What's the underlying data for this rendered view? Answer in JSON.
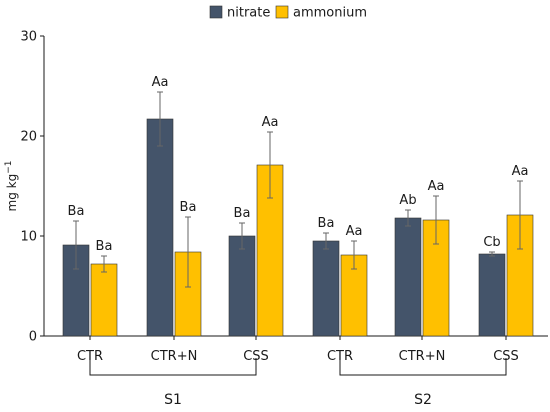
{
  "chart_data": {
    "type": "bar",
    "ylabel_main": "mg kg",
    "ylabel_sup": "−1",
    "ylim": [
      0,
      30
    ],
    "yticks": [
      0,
      10,
      20,
      30
    ],
    "categories": [
      "CTR",
      "CTR+N",
      "CSS",
      "CTR",
      "CTR+N",
      "CSS"
    ],
    "groups": [
      {
        "label": "S1",
        "start": 0,
        "end": 2
      },
      {
        "label": "S2",
        "start": 3,
        "end": 5
      }
    ],
    "series": [
      {
        "name": "nitrate",
        "color": "#44546a",
        "values": [
          9.1,
          21.7,
          10.0,
          9.5,
          11.8,
          8.2
        ],
        "errors": [
          2.4,
          2.7,
          1.3,
          0.8,
          0.8,
          0.2
        ],
        "labels": [
          "Ba",
          "Aa",
          "Ba",
          "Ba",
          "Ab",
          "Cb"
        ]
      },
      {
        "name": "ammonium",
        "color": "#ffc000",
        "values": [
          7.2,
          8.4,
          17.1,
          8.1,
          11.6,
          12.1
        ],
        "errors": [
          0.8,
          3.5,
          3.3,
          1.4,
          2.4,
          3.4
        ],
        "labels": [
          "Ba",
          "Ba",
          "Aa",
          "Aa",
          "Aa",
          "Aa"
        ]
      }
    ],
    "legend": "top-center",
    "grid": false
  }
}
